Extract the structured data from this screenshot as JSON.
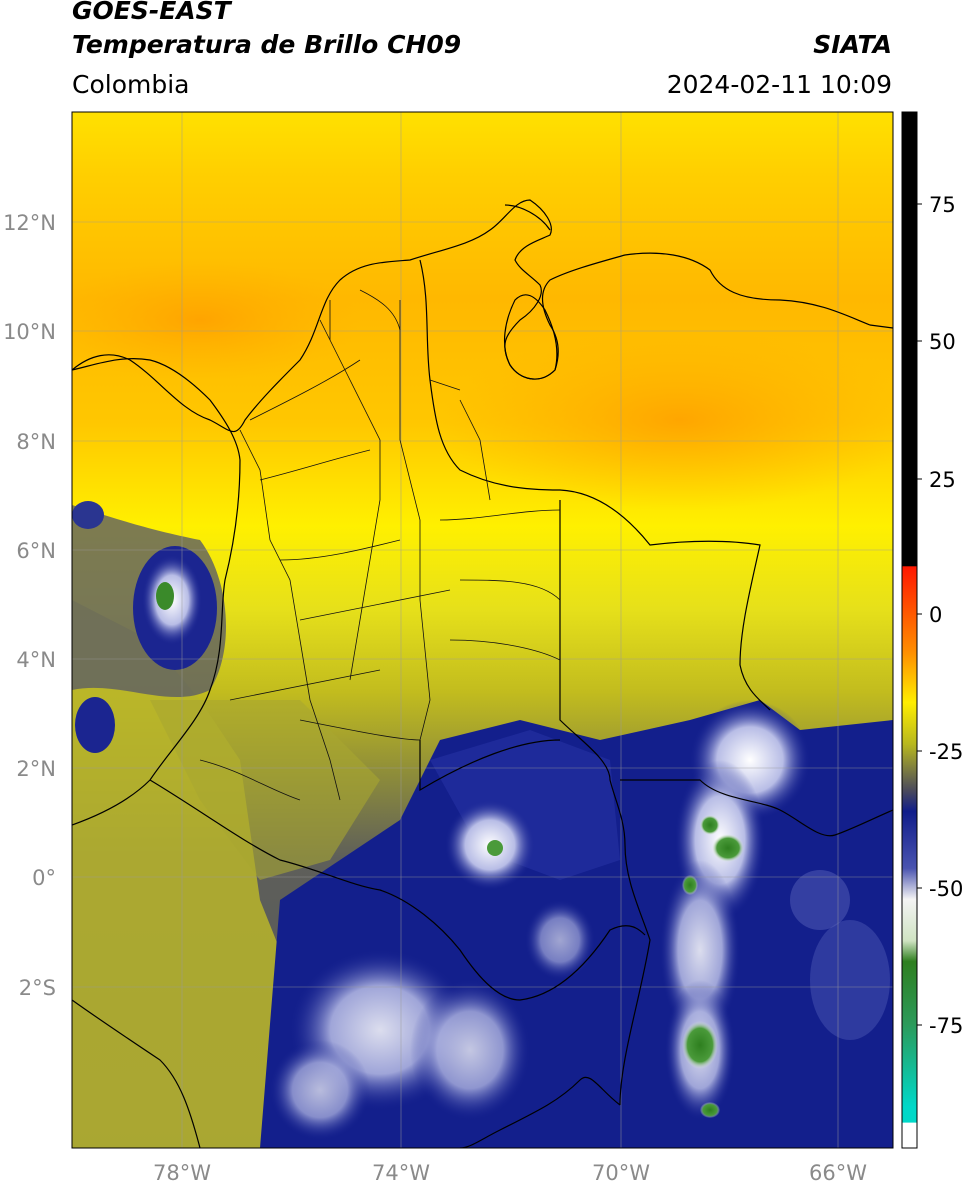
{
  "header": {
    "satellite": "GOES-EAST",
    "product": "Temperatura de Brillo CH09",
    "region": "Colombia",
    "institution": "SIATA",
    "datetime": "2024-02-11 10:09"
  },
  "map": {
    "lon_ticks": [
      "78°W",
      "74°W",
      "70°W",
      "66°W"
    ],
    "lat_ticks": [
      "12°N",
      "10°N",
      "8°N",
      "6°N",
      "4°N",
      "2°N",
      "0°",
      "2°S"
    ]
  },
  "colorbar": {
    "tick_labels": [
      "75",
      "50",
      "25",
      "0",
      "-25",
      "-50",
      "-75"
    ],
    "colors": {
      "black": "#000000",
      "red": "#ff1800",
      "orange": "#ff9a00",
      "yellow": "#ffee00",
      "olive": "#b8b81e",
      "gray": "#4a4a5c",
      "navy": "#101d8a",
      "white": "#f4f4f4",
      "green": "#2e7f1f",
      "teal": "#00d8c8"
    }
  }
}
